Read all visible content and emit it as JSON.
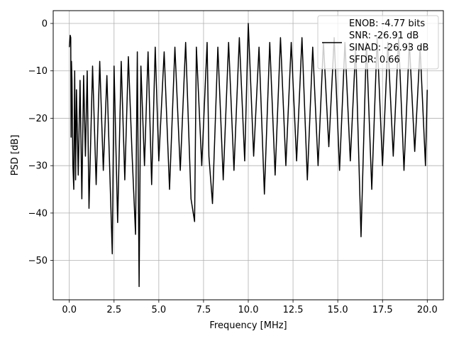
{
  "chart_data": {
    "type": "line",
    "xlabel": "Frequency [MHz]",
    "ylabel": "PSD [dB]",
    "xlim": [
      -0.9,
      20.9
    ],
    "ylim": [
      -58.3,
      2.7
    ],
    "grid": true,
    "legend_position": "top-right",
    "line_color": "#000000",
    "xticks": [
      0.0,
      2.5,
      5.0,
      7.5,
      10.0,
      12.5,
      15.0,
      17.5,
      20.0
    ],
    "xtick_labels": [
      "0.0",
      "2.5",
      "5.0",
      "7.5",
      "10.0",
      "12.5",
      "15.0",
      "17.5",
      "20.0"
    ],
    "yticks": [
      0,
      -10,
      -20,
      -30,
      -40,
      -50
    ],
    "ytick_labels": [
      "0",
      "−10",
      "−20",
      "−30",
      "−40",
      "−50"
    ],
    "legend_lines": [
      "ENOB: -4.77 bits",
      "SNR: -26.91 dB",
      "SINAD: -26.93 dB",
      "SFDR: 0.66"
    ],
    "series": [
      {
        "x": [
          0.0,
          0.05,
          0.08,
          0.1,
          0.12,
          0.15,
          0.2,
          0.25,
          0.3,
          0.35,
          0.4,
          0.5,
          0.6,
          0.7,
          0.8,
          0.9,
          1.0,
          1.1,
          1.3,
          1.5,
          1.7,
          1.9,
          2.1,
          2.3,
          2.4,
          2.5,
          2.7,
          2.9,
          3.1,
          3.3,
          3.5,
          3.7,
          3.8,
          3.9,
          4.0,
          4.2,
          4.4,
          4.6,
          4.8,
          5.0,
          5.3,
          5.6,
          5.9,
          6.2,
          6.5,
          6.8,
          7.0,
          7.1,
          7.4,
          7.7,
          7.8,
          8.0,
          8.3,
          8.6,
          8.9,
          9.2,
          9.5,
          9.8,
          10.0,
          10.3,
          10.6,
          10.9,
          11.2,
          11.5,
          11.8,
          12.1,
          12.4,
          12.7,
          13.0,
          13.3,
          13.6,
          13.9,
          14.2,
          14.5,
          14.8,
          15.1,
          15.4,
          15.7,
          16.0,
          16.3,
          16.6,
          16.9,
          17.2,
          17.5,
          17.8,
          18.1,
          18.4,
          18.7,
          19.0,
          19.3,
          19.6,
          19.9,
          20.0
        ],
        "y": [
          -5,
          -2.5,
          -3,
          -24,
          -8,
          -12,
          -30,
          -35,
          -10,
          -33,
          -14,
          -32,
          -12,
          -37,
          -11,
          -28,
          -10,
          -39,
          -9,
          -34,
          -8,
          -31,
          -11,
          -36,
          -48.6,
          -9,
          -42,
          -8,
          -33,
          -7,
          -27,
          -44.5,
          -6,
          -55.5,
          -9,
          -30,
          -6,
          -34,
          -5,
          -29,
          -6,
          -35,
          -5,
          -31,
          -4,
          -37,
          -41.8,
          -5,
          -30,
          -4,
          -28,
          -38,
          -5,
          -33,
          -4,
          -31,
          -3,
          -29,
          0,
          -28,
          -5,
          -36,
          -4,
          -32,
          -3,
          -30,
          -4,
          -29,
          -3,
          -33,
          -5,
          -30,
          -4,
          -26,
          -3,
          -31,
          -4,
          -29,
          -5,
          -45,
          -4,
          -35,
          -3,
          -30,
          -4,
          -28,
          -3,
          -31,
          -4,
          -27,
          -5,
          -30,
          -14
        ]
      }
    ]
  }
}
